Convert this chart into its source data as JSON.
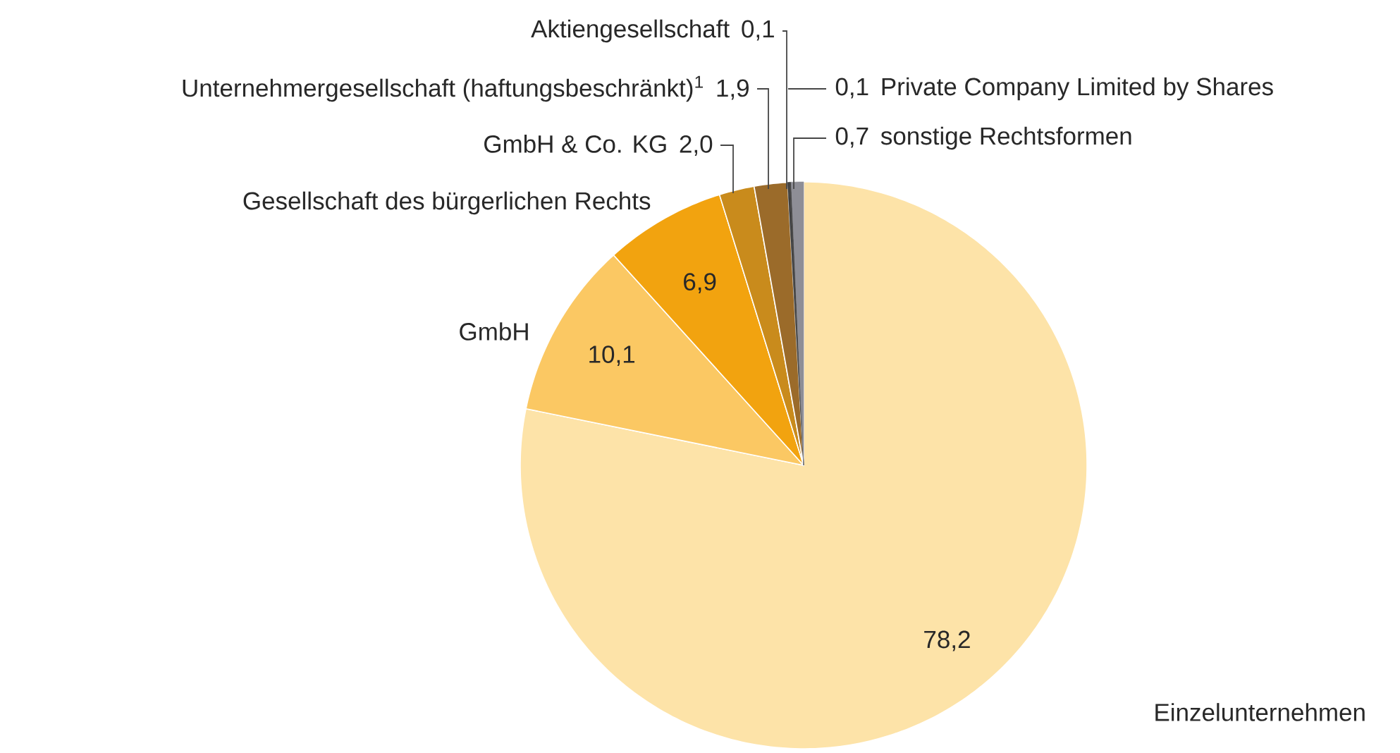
{
  "chart_data": {
    "type": "pie",
    "categories": [
      "Einzelunternehmen",
      "GmbH",
      "Gesellschaft des bürgerlichen Rechts",
      "GmbH & Co. KG",
      "Unternehmergesellschaft (haftungsbeschränkt)$^{1}$",
      "Aktiengesellschaft",
      "Private Company Limited by Shares",
      "sonstige Rechtsformen"
    ],
    "values": [
      78.2,
      10.1,
      6.9,
      2.0,
      1.9,
      0.1,
      0.1,
      0.7
    ],
    "colors": [
      "#fde3a8",
      "#fbc863",
      "#f2a30f",
      "#c98b1c",
      "#9b6b2a",
      "#3c3c3c",
      "#464646",
      "#8e8e96"
    ],
    "value_labels": [
      "78,2",
      "10,1",
      "6,9",
      "2,0",
      "1,9",
      "0,1",
      "0,1",
      "0,7"
    ]
  }
}
